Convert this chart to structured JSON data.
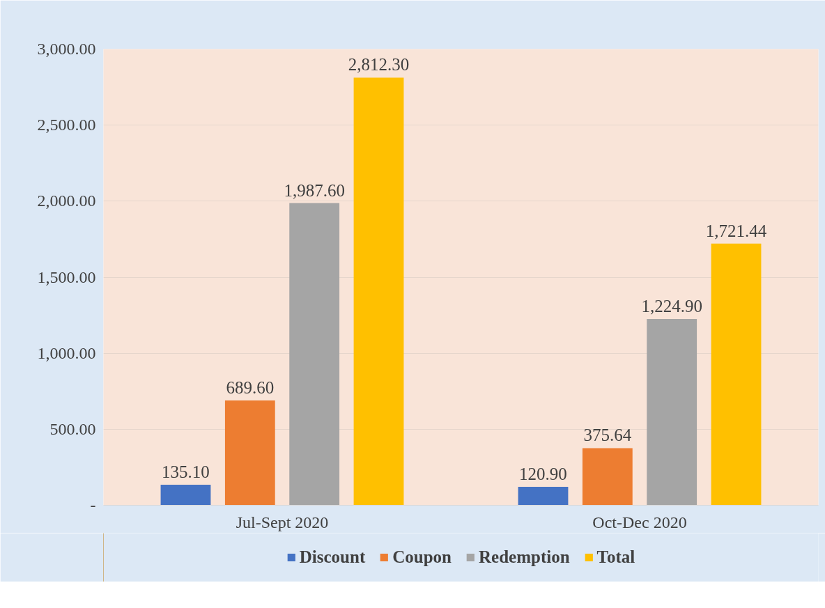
{
  "chart_data": {
    "type": "bar",
    "categories": [
      "Jul-Sept 2020",
      "Oct-Dec 2020"
    ],
    "series": [
      {
        "name": "Discount",
        "color": "#4472c4",
        "values": [
          135.1,
          120.9
        ],
        "value_labels": [
          "135.10",
          "120.90"
        ]
      },
      {
        "name": "Coupon",
        "color": "#ed7d31",
        "values": [
          689.6,
          375.64
        ],
        "value_labels": [
          "689.60",
          "375.64"
        ]
      },
      {
        "name": "Redemption",
        "color": "#a5a5a5",
        "values": [
          1987.6,
          1224.9
        ],
        "value_labels": [
          "1,987.60",
          "1,224.90"
        ]
      },
      {
        "name": "Total",
        "color": "#ffc000",
        "values": [
          2812.3,
          1721.44
        ],
        "value_labels": [
          "2,812.30",
          "1,721.44"
        ]
      }
    ],
    "ylim": [
      0,
      3000
    ],
    "yticks": [
      {
        "value": 0,
        "label": "-"
      },
      {
        "value": 500,
        "label": "500.00"
      },
      {
        "value": 1000,
        "label": "1,000.00"
      },
      {
        "value": 1500,
        "label": "1,500.00"
      },
      {
        "value": 2000,
        "label": "2,000.00"
      },
      {
        "value": 2500,
        "label": "2,500.00"
      },
      {
        "value": 3000,
        "label": "3,000.00"
      }
    ],
    "grid": "y",
    "legend": "bottom"
  }
}
